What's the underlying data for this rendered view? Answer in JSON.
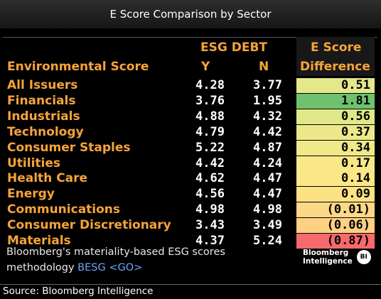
{
  "window": {
    "title": "E Score Comparison by Sector"
  },
  "table": {
    "header": {
      "group": "ESG DEBT",
      "label_col": "Environmental Score",
      "y": "Y",
      "n": "N",
      "diff_line1": "E Score",
      "diff_line2": "Difference"
    }
  },
  "chart_data": {
    "type": "table",
    "title": "E Score Comparison by Sector",
    "columns": [
      "Environmental Score",
      "ESG DEBT Y",
      "ESG DEBT N",
      "E Score Difference"
    ],
    "rows": [
      {
        "sector": "All Issuers",
        "y": "4.28",
        "n": "3.77",
        "diff": "0.51",
        "color": "#e4e88a"
      },
      {
        "sector": "Financials",
        "y": "3.76",
        "n": "1.95",
        "diff": "1.81",
        "color": "#6ec26f"
      },
      {
        "sector": "Industrials",
        "y": "4.88",
        "n": "4.32",
        "diff": "0.56",
        "color": "#e1e889"
      },
      {
        "sector": "Technology",
        "y": "4.79",
        "n": "4.42",
        "diff": "0.37",
        "color": "#ede98a"
      },
      {
        "sector": "Consumer Staples",
        "y": "5.22",
        "n": "4.87",
        "diff": "0.34",
        "color": "#efe98a"
      },
      {
        "sector": "Utilities",
        "y": "4.42",
        "n": "4.24",
        "diff": "0.17",
        "color": "#f9e888"
      },
      {
        "sector": "Health Care",
        "y": "4.62",
        "n": "4.47",
        "diff": "0.14",
        "color": "#fbe787"
      },
      {
        "sector": "Energy",
        "y": "4.56",
        "n": "4.47",
        "diff": "0.09",
        "color": "#fde284"
      },
      {
        "sector": "Communications",
        "y": "4.98",
        "n": "4.98",
        "diff": "(0.01)",
        "color": "#fdd886"
      },
      {
        "sector": "Consumer Discretionary",
        "y": "3.43",
        "n": "3.49",
        "diff": "(0.06)",
        "color": "#fdd084"
      },
      {
        "sector": "Materials",
        "y": "4.37",
        "n": "5.24",
        "diff": "(0.87)",
        "color": "#f6696d"
      }
    ]
  },
  "footnote": {
    "line1": "Bloomberg's materiality-based ESG scores",
    "line2_text": "methodology",
    "line2_link": "BESG <GO>"
  },
  "logo": {
    "line1": "Bloomberg",
    "line2": "Intelligence",
    "badge": "BI"
  },
  "source": "Source: Bloomberg Intelligence"
}
